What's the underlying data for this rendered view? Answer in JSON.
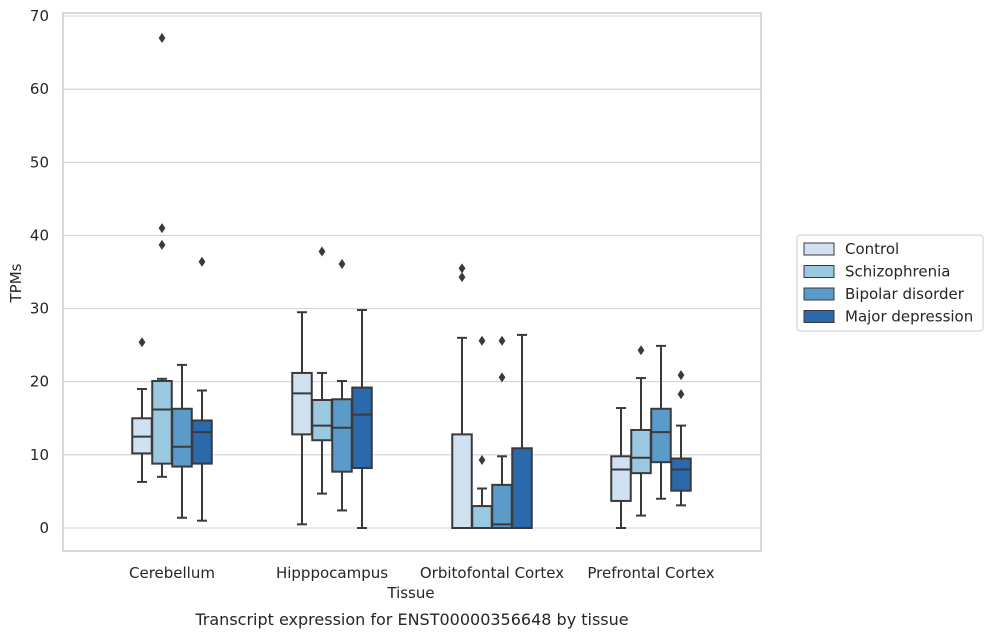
{
  "chart_data": {
    "type": "box",
    "caption": "Transcript expression for ENST00000356648 by tissue",
    "xlabel": "Tissue",
    "ylabel": "TPMs",
    "ylim": [
      -3,
      70.5
    ],
    "yticks": [
      0,
      10,
      20,
      30,
      40,
      50,
      60,
      70
    ],
    "grid": "horizontal",
    "legend_position": "right",
    "categories": [
      "Cerebellum",
      "Hipppocampus",
      "Orbitofontal Cortex",
      "Prefrontal Cortex"
    ],
    "series": [
      {
        "name": "Control",
        "color": "#d0e1f2",
        "boxes": [
          {
            "whislo": 6.3,
            "q1": 10.2,
            "med": 12.5,
            "q3": 15.0,
            "whishi": 19.0,
            "fliers": [
              25.4
            ]
          },
          {
            "whislo": 0.5,
            "q1": 12.8,
            "med": 18.4,
            "q3": 21.2,
            "whishi": 29.5,
            "fliers": []
          },
          {
            "whislo": 0.0,
            "q1": 0.0,
            "med": 0.0,
            "q3": 12.8,
            "whishi": 26.0,
            "fliers": [
              34.3,
              35.5
            ]
          },
          {
            "whislo": 0.0,
            "q1": 3.7,
            "med": 8.0,
            "q3": 9.8,
            "whishi": 16.4,
            "fliers": []
          }
        ]
      },
      {
        "name": "Schizophrenia",
        "color": "#9ac8e0",
        "boxes": [
          {
            "whislo": 7.0,
            "q1": 8.8,
            "med": 16.2,
            "q3": 20.1,
            "whishi": 20.4,
            "fliers": [
              38.7,
              41.0,
              67.0
            ]
          },
          {
            "whislo": 4.7,
            "q1": 12.0,
            "med": 14.0,
            "q3": 17.5,
            "whishi": 21.2,
            "fliers": [
              37.8
            ]
          },
          {
            "whislo": 0.0,
            "q1": 0.0,
            "med": 0.0,
            "q3": 3.0,
            "whishi": 5.4,
            "fliers": [
              9.3,
              25.6
            ]
          },
          {
            "whislo": 1.7,
            "q1": 7.5,
            "med": 9.6,
            "q3": 13.4,
            "whishi": 20.5,
            "fliers": [
              24.3
            ]
          }
        ]
      },
      {
        "name": "Bipolar disorder",
        "color": "#5a9bc9",
        "boxes": [
          {
            "whislo": 1.4,
            "q1": 8.4,
            "med": 11.1,
            "q3": 16.3,
            "whishi": 22.3,
            "fliers": []
          },
          {
            "whislo": 2.4,
            "q1": 7.7,
            "med": 13.7,
            "q3": 17.6,
            "whishi": 20.1,
            "fliers": [
              36.1
            ]
          },
          {
            "whislo": 0.0,
            "q1": 0.0,
            "med": 0.5,
            "q3": 5.9,
            "whishi": 9.8,
            "fliers": [
              20.6,
              25.6
            ]
          },
          {
            "whislo": 4.0,
            "q1": 9.0,
            "med": 13.1,
            "q3": 16.3,
            "whishi": 24.9,
            "fliers": []
          }
        ]
      },
      {
        "name": "Major depression",
        "color": "#2a6aac",
        "boxes": [
          {
            "whislo": 1.0,
            "q1": 8.8,
            "med": 13.1,
            "q3": 14.7,
            "whishi": 18.8,
            "fliers": [
              36.4
            ]
          },
          {
            "whislo": 0.0,
            "q1": 8.2,
            "med": 15.5,
            "q3": 19.2,
            "whishi": 29.8,
            "fliers": []
          },
          {
            "whislo": 0.0,
            "q1": 0.0,
            "med": 0.0,
            "q3": 10.9,
            "whishi": 26.4,
            "fliers": []
          },
          {
            "whislo": 3.1,
            "q1": 5.1,
            "med": 8.0,
            "q3": 9.5,
            "whishi": 14.0,
            "fliers": [
              18.3,
              20.9
            ]
          }
        ]
      }
    ]
  }
}
